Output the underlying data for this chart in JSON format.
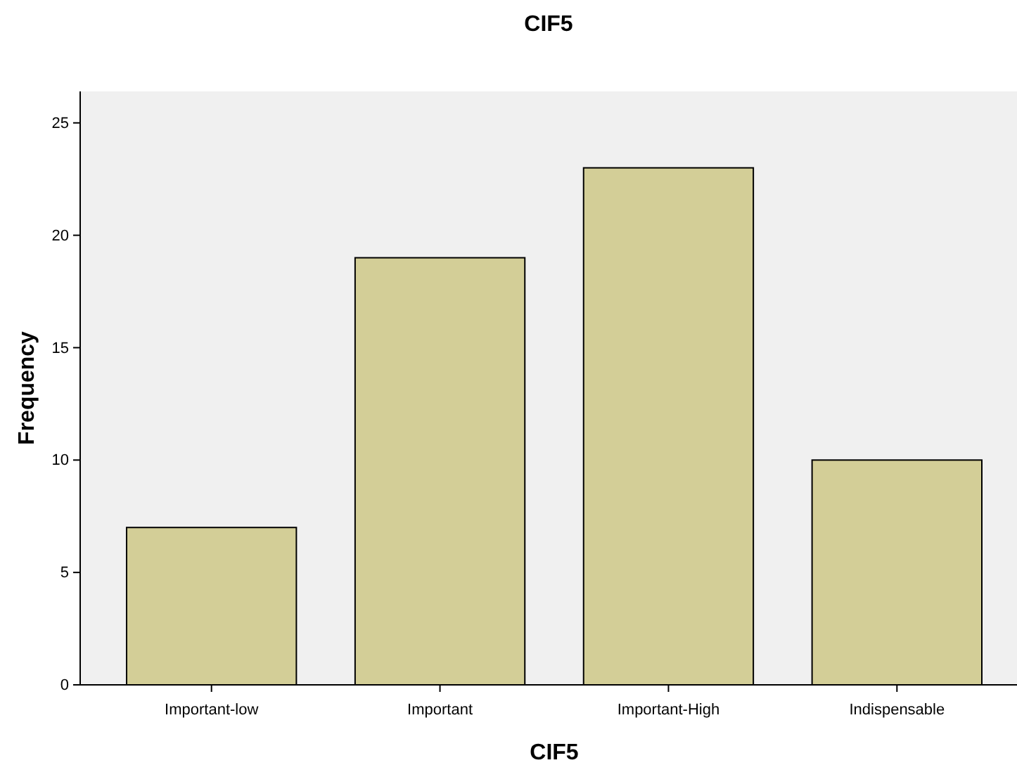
{
  "chart_data": {
    "type": "bar",
    "title": "CIF5",
    "xlabel": "CIF5",
    "ylabel": "Frequency",
    "categories": [
      "Important-low",
      "Important",
      "Important-High",
      "Indispensable"
    ],
    "values": [
      7,
      19,
      23,
      10
    ],
    "color": "#d3ce97",
    "ylim": [
      0,
      26.4
    ],
    "yticks": [
      0,
      5,
      10,
      15,
      20,
      25
    ],
    "grid": false
  }
}
